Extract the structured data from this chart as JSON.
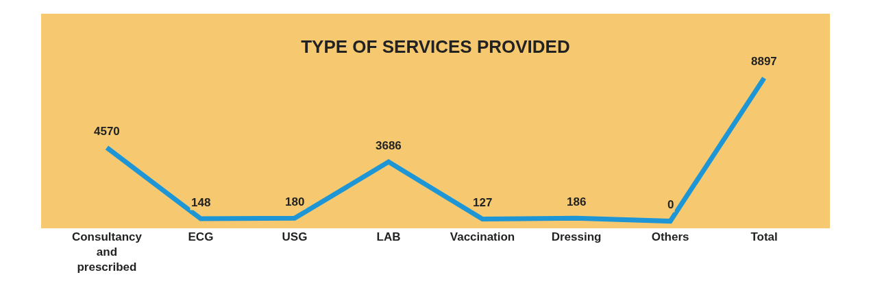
{
  "chart_data": {
    "type": "line",
    "title": "TYPE OF SERVICES PROVIDED",
    "categories": [
      "Consultancy and prescribed",
      "ECG",
      "USG",
      "LAB",
      "Vaccination",
      "Dressing",
      "Others",
      "Total"
    ],
    "series": [
      {
        "color": "#1e96d6",
        "values": [
          4570,
          148,
          180,
          3686,
          127,
          186,
          0,
          8897
        ]
      }
    ],
    "data_labels": true,
    "line_style": "solid"
  }
}
